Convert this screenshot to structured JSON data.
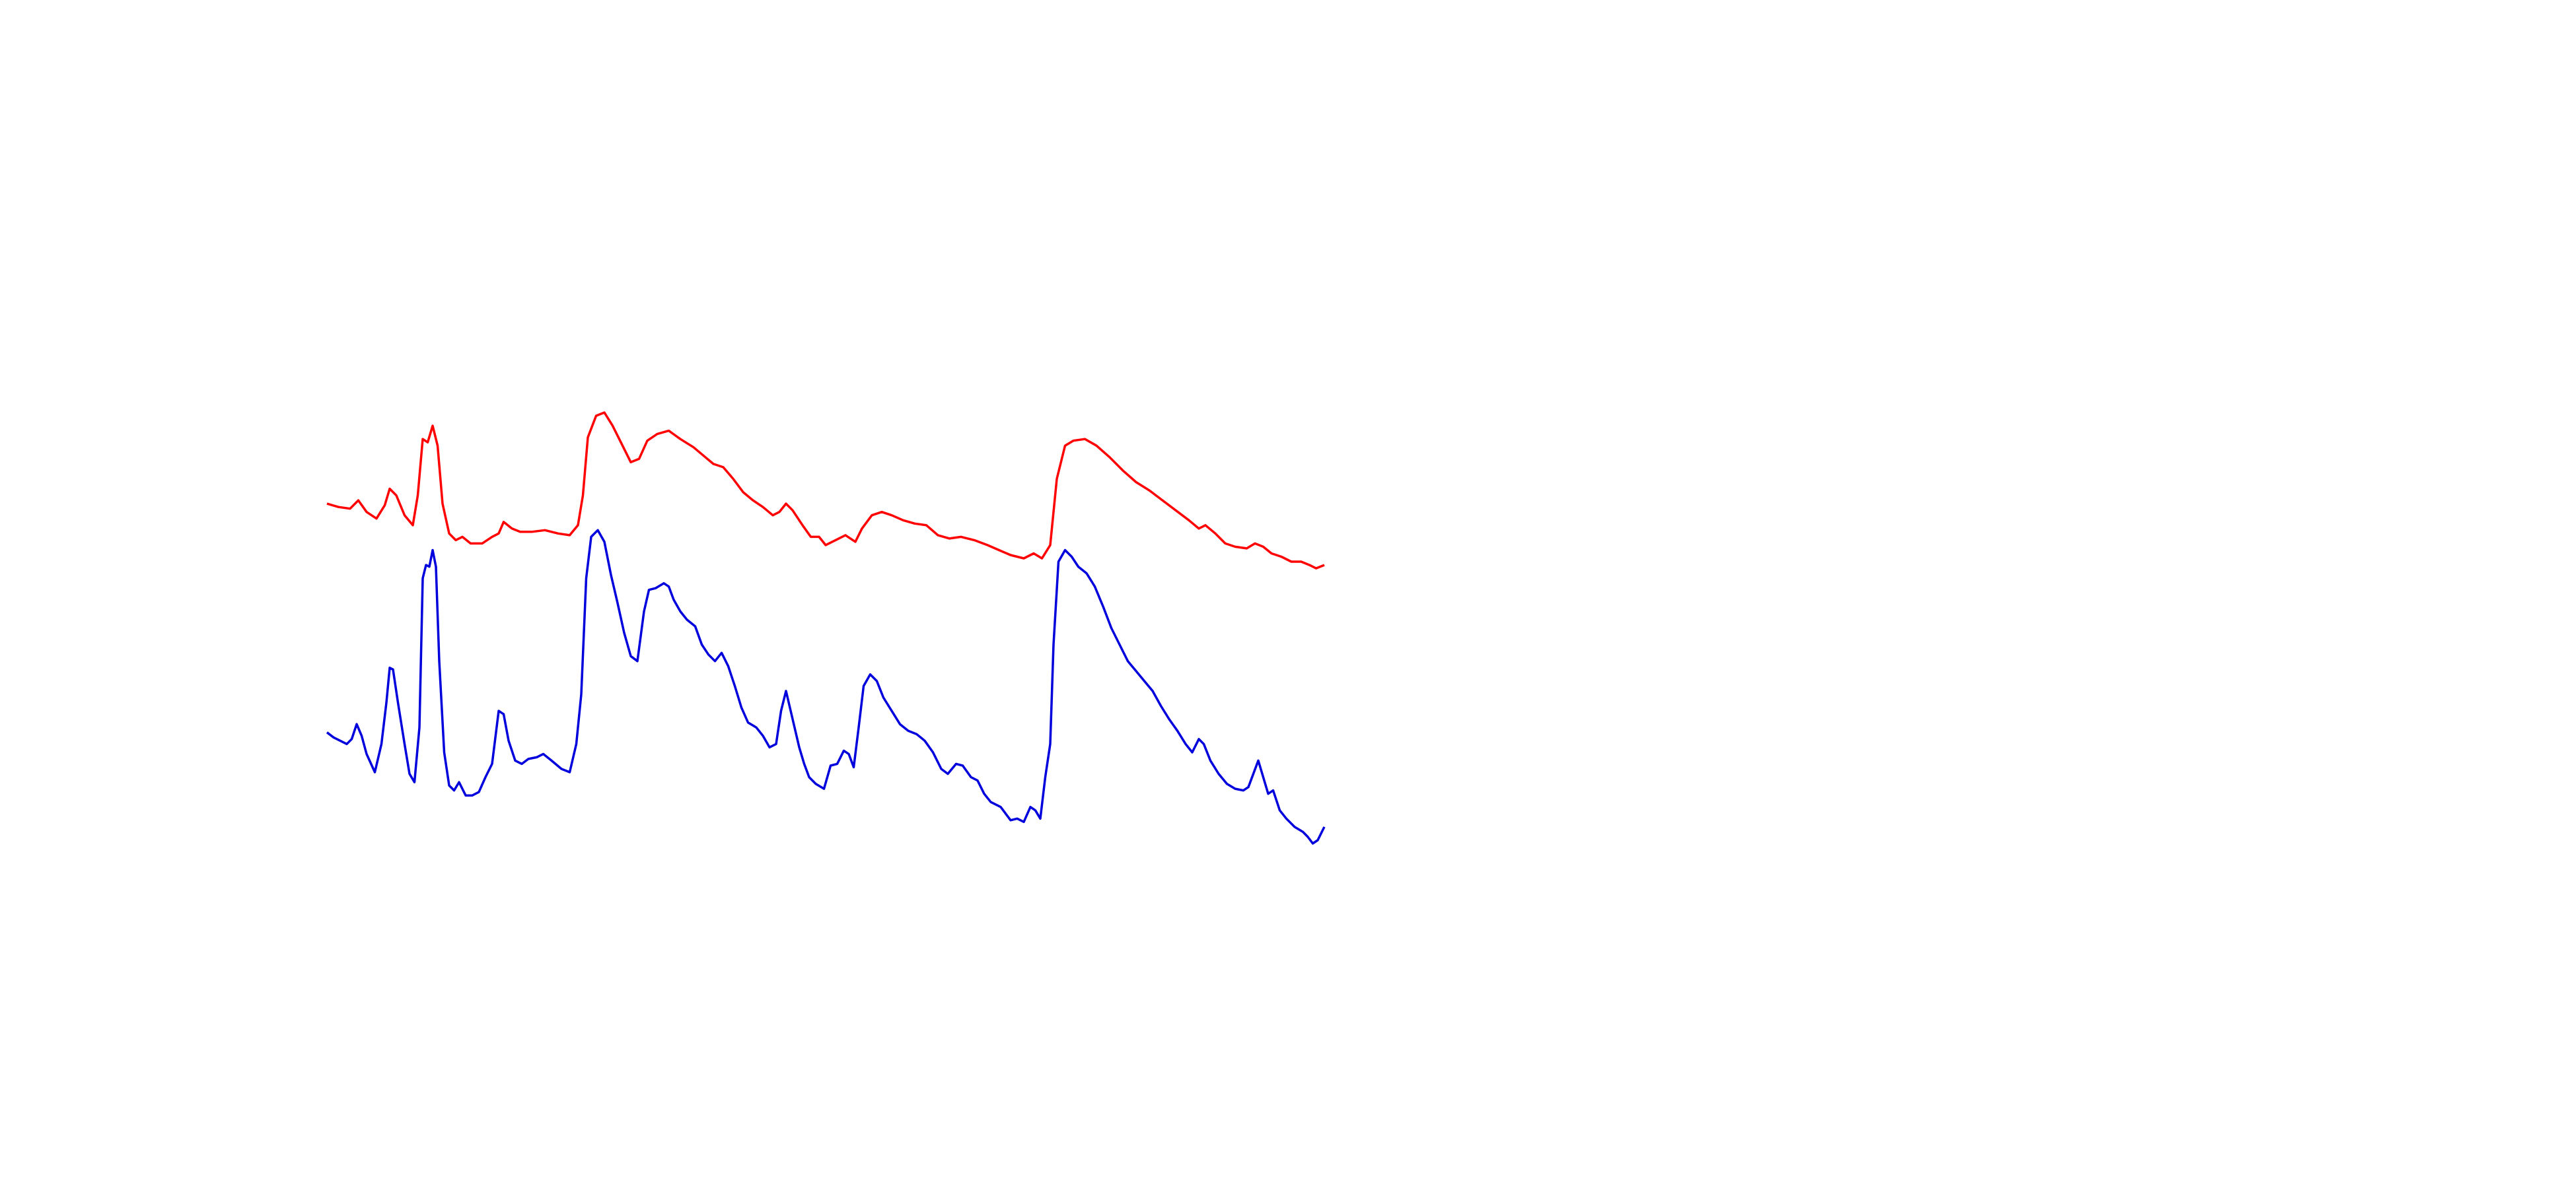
{
  "chart_data": {
    "type": "line",
    "series": [
      {
        "color": "#ff0000",
        "x": [
          0,
          7,
          14,
          19,
          24,
          30,
          35,
          38,
          42,
          47,
          52,
          55,
          58,
          61,
          64,
          67,
          70,
          74,
          78,
          82,
          87,
          94,
          100,
          104,
          107,
          112,
          117,
          124,
          132,
          140,
          147,
          152,
          155,
          158,
          163,
          168,
          173,
          179,
          184,
          189,
          194,
          200,
          207,
          214,
          222,
          228,
          234,
          240,
          246,
          252,
          258,
          264,
          270,
          274,
          278,
          282,
          288,
          293,
          298,
          302,
          308,
          314,
          320,
          324,
          330,
          336,
          342,
          349,
          356,
          363,
          370,
          377,
          384,
          392,
          400,
          407,
          414,
          422,
          428,
          433,
          438,
          442,
          447,
          452,
          459,
          466,
          474,
          482,
          490,
          498,
          506,
          514,
          522,
          528,
          532,
          538,
          544,
          550,
          557,
          562,
          567,
          572,
          578,
          584,
          590,
          595,
          599,
          604
        ],
        "values": [
          215,
          213,
          212,
          217,
          210,
          206,
          214,
          224,
          220,
          208,
          202,
          220,
          254,
          252,
          262,
          250,
          215,
          197,
          193,
          195,
          191,
          191,
          195,
          197,
          204,
          200,
          198,
          198,
          199,
          197,
          196,
          202,
          220,
          255,
          268,
          270,
          262,
          250,
          240,
          242,
          253,
          257,
          259,
          254,
          249,
          244,
          239,
          237,
          230,
          222,
          217,
          213,
          208,
          210,
          215,
          211,
          202,
          195,
          195,
          190,
          193,
          196,
          192,
          200,
          208,
          210,
          208,
          205,
          203,
          202,
          196,
          194,
          195,
          193,
          190,
          187,
          184,
          182,
          185,
          182,
          190,
          230,
          250,
          253,
          254,
          250,
          243,
          235,
          228,
          223,
          217,
          211,
          205,
          200,
          202,
          197,
          191,
          189,
          188,
          191,
          189,
          185,
          183,
          180,
          180,
          178,
          176,
          178
        ]
      },
      {
        "color": "#0000dd",
        "x": [
          0,
          4,
          8,
          12,
          15,
          18,
          21,
          24,
          29,
          33,
          36,
          38,
          40,
          43,
          47,
          50,
          53,
          56,
          58,
          60,
          62,
          64,
          66,
          68,
          71,
          74,
          77,
          80,
          84,
          88,
          92,
          96,
          100,
          104,
          107,
          110,
          114,
          118,
          122,
          127,
          131,
          136,
          142,
          147,
          151,
          154,
          157,
          160,
          164,
          168,
          172,
          176,
          180,
          184,
          188,
          192,
          195,
          199,
          204,
          207,
          210,
          214,
          218,
          223,
          227,
          231,
          235,
          239,
          243,
          247,
          251,
          255,
          260,
          264,
          268,
          272,
          275,
          278,
          282,
          286,
          289,
          292,
          296,
          301,
          305,
          309,
          313,
          316,
          319,
          322,
          325,
          329,
          333,
          337,
          342,
          347,
          352,
          357,
          362,
          367,
          372,
          376,
          381,
          385,
          390,
          394,
          398,
          402,
          408,
          414,
          418,
          422,
          426,
          429,
          432,
          435,
          438,
          440,
          443,
          447,
          451,
          455,
          460,
          465,
          470,
          475,
          480,
          485,
          490,
          495,
          500,
          505,
          510,
          515,
          520,
          524,
          528,
          531,
          535,
          540,
          545,
          550,
          555,
          558,
          561,
          564,
          567,
          570,
          573,
          577,
          581,
          586,
          591,
          594,
          597,
          600,
          604
        ],
        "values": [
          77,
          74,
          72,
          70,
          73,
          82,
          75,
          64,
          53,
          70,
          95,
          116,
          115,
          95,
          70,
          52,
          47,
          80,
          170,
          178,
          177,
          187,
          177,
          120,
          65,
          45,
          42,
          47,
          39,
          39,
          41,
          50,
          58,
          90,
          88,
          72,
          60,
          58,
          61,
          62,
          64,
          60,
          55,
          53,
          70,
          100,
          170,
          195,
          199,
          192,
          172,
          155,
          137,
          123,
          120,
          150,
          163,
          164,
          167,
          165,
          157,
          150,
          145,
          141,
          130,
          124,
          120,
          125,
          117,
          105,
          92,
          83,
          80,
          75,
          68,
          70,
          90,
          102,
          85,
          68,
          58,
          50,
          46,
          43,
          57,
          58,
          66,
          64,
          56,
          80,
          105,
          112,
          108,
          98,
          90,
          82,
          78,
          76,
          72,
          65,
          55,
          52,
          58,
          57,
          50,
          48,
          40,
          35,
          32,
          24,
          25,
          23,
          32,
          30,
          25,
          50,
          70,
          130,
          180,
          187,
          183,
          177,
          173,
          165,
          153,
          140,
          130,
          120,
          114,
          108,
          102,
          93,
          85,
          78,
          70,
          65,
          73,
          70,
          60,
          52,
          46,
          43,
          42,
          44,
          52,
          60,
          50,
          40,
          42,
          30,
          25,
          20,
          17,
          14,
          10,
          12,
          20
        ]
      }
    ]
  }
}
